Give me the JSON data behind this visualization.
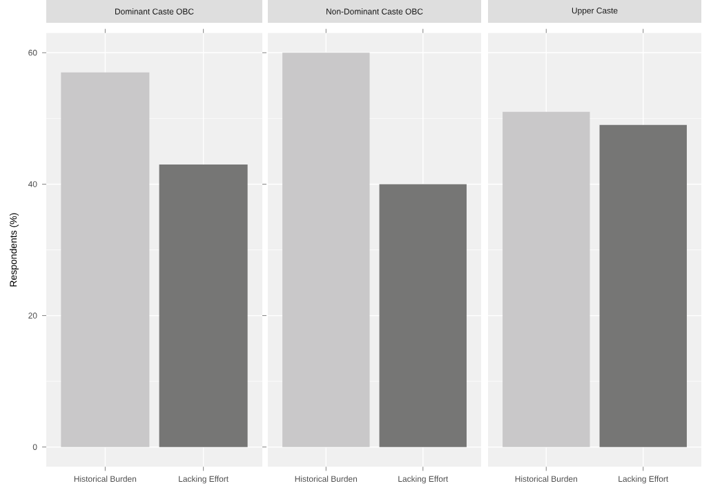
{
  "chart_data": [
    {
      "type": "bar",
      "title": "Dominant Caste OBC",
      "ylabel": "Respondents (%)",
      "categories": [
        "Historical Burden",
        "Lacking Effort"
      ],
      "values": [
        57,
        43
      ],
      "colors": [
        "#c9c8c9",
        "#767675"
      ],
      "ylim": [
        -3,
        63
      ],
      "yticks": [
        0,
        20,
        40,
        60
      ],
      "grid": true
    },
    {
      "type": "bar",
      "title": "Non-Dominant Caste OBC",
      "categories": [
        "Historical Burden",
        "Lacking Effort"
      ],
      "values": [
        60,
        40
      ],
      "colors": [
        "#c9c8c9",
        "#767675"
      ],
      "ylim": [
        -3,
        63
      ],
      "yticks": [
        0,
        20,
        40,
        60
      ],
      "grid": true,
      "tick_labels": "x"
    },
    {
      "type": "bar",
      "title": "Upper Caste",
      "categories": [
        "Historical Burden",
        "Lacking Effort"
      ],
      "values": [
        51,
        49
      ],
      "colors": [
        "#c9c8c9",
        "#767675"
      ],
      "ylim": [
        -3,
        63
      ],
      "yticks": [
        0,
        20,
        40,
        60
      ],
      "grid": true,
      "tick_labels": "x"
    }
  ]
}
